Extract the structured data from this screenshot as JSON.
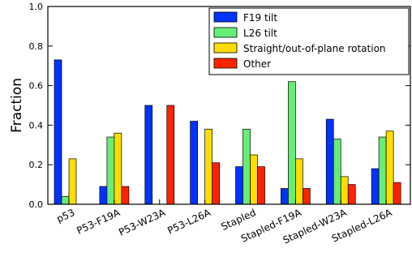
{
  "chart_data": {
    "type": "bar",
    "title": "",
    "xlabel": "",
    "ylabel": "Fraction",
    "ylim": [
      0,
      1.0
    ],
    "yticks": [
      "0.0",
      "0.2",
      "0.4",
      "0.6",
      "0.8",
      "1.0"
    ],
    "grid": false,
    "legend_position": "top-right",
    "categories": [
      "p53",
      "P53-F19A",
      "P53-W23A",
      "P53-L26A",
      "Stapled",
      "Stapled-F19A",
      "Stapled-W23A",
      "Stapled-L26A"
    ],
    "series": [
      {
        "name": "F19 tilt",
        "color": "#0033ff",
        "values": [
          0.73,
          0.09,
          0.5,
          0.42,
          0.19,
          0.08,
          0.43,
          0.18
        ]
      },
      {
        "name": "L26 tilt",
        "color": "#66ee77",
        "values": [
          0.04,
          0.34,
          0.0,
          0.0,
          0.38,
          0.62,
          0.33,
          0.34
        ]
      },
      {
        "name": "Straight/out-of-plane rotation",
        "color": "#ffdd00",
        "values": [
          0.23,
          0.36,
          0.0,
          0.38,
          0.25,
          0.23,
          0.14,
          0.37
        ]
      },
      {
        "name": "Other",
        "color": "#ff2200",
        "values": [
          0.0,
          0.09,
          0.5,
          0.21,
          0.19,
          0.08,
          0.1,
          0.11
        ]
      }
    ]
  }
}
